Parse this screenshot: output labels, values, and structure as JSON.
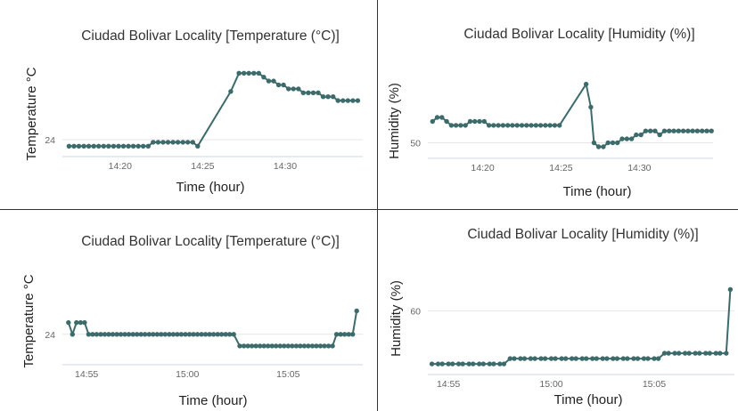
{
  "colors": {
    "series": "#3d6b6b",
    "grid": "#e6e6e6",
    "axis": "#ccd6eb",
    "divider": "#333333"
  },
  "chart_data": [
    {
      "type": "line",
      "title": "Ciudad Bolivar Locality [Temperature (°C)]",
      "xlabel": "Time (hour)",
      "ylabel": "Temperature °C",
      "x_ticks": [
        "14:20",
        "14:25",
        "14:30"
      ],
      "x_tick_minutes": [
        20,
        25,
        30
      ],
      "xlim": [
        16.5,
        34.7
      ],
      "y_ticks": [
        24
      ],
      "ylim": [
        23.35,
        26.8
      ],
      "x_minutes": [
        16.9,
        17.2,
        17.5,
        17.8,
        18.1,
        18.4,
        18.7,
        19.0,
        19.3,
        19.6,
        19.9,
        20.2,
        20.5,
        20.8,
        21.1,
        21.4,
        21.7,
        22.0,
        22.3,
        22.6,
        22.9,
        23.2,
        23.5,
        23.8,
        24.1,
        24.4,
        24.7,
        26.7,
        27.2,
        27.5,
        27.8,
        28.1,
        28.4,
        28.7,
        29.0,
        29.3,
        29.6,
        29.9,
        30.2,
        30.5,
        30.8,
        31.1,
        31.4,
        31.7,
        32.0,
        32.3,
        32.6,
        32.9,
        33.2,
        33.5,
        33.8,
        34.1,
        34.4
      ],
      "values": [
        23.75,
        23.75,
        23.75,
        23.75,
        23.75,
        23.75,
        23.75,
        23.75,
        23.75,
        23.75,
        23.75,
        23.75,
        23.75,
        23.75,
        23.75,
        23.75,
        23.75,
        23.9,
        23.9,
        23.9,
        23.9,
        23.9,
        23.9,
        23.9,
        23.9,
        23.9,
        23.75,
        25.85,
        26.55,
        26.55,
        26.55,
        26.55,
        26.55,
        26.4,
        26.25,
        26.25,
        26.1,
        26.1,
        25.95,
        25.95,
        25.95,
        25.8,
        25.8,
        25.8,
        25.8,
        25.65,
        25.65,
        25.65,
        25.5,
        25.5,
        25.5,
        25.5,
        25.5
      ]
    },
    {
      "type": "line",
      "title": "Ciudad Bolivar Locality [Humidity (%)]",
      "xlabel": "Time (hour)",
      "ylabel": "Humidity (%)",
      "x_ticks": [
        "14:20",
        "14:25",
        "14:30"
      ],
      "x_tick_minutes": [
        20,
        25,
        30
      ],
      "xlim": [
        16.5,
        34.7
      ],
      "y_ticks": [
        50
      ],
      "ylim": [
        49.02,
        54.8
      ],
      "x_minutes": [
        16.8,
        17.1,
        17.4,
        17.7,
        18.0,
        18.3,
        18.6,
        18.9,
        19.2,
        19.5,
        19.8,
        20.1,
        20.4,
        20.7,
        21.0,
        21.3,
        21.6,
        21.9,
        22.2,
        22.5,
        22.8,
        23.1,
        23.4,
        23.7,
        24.0,
        24.3,
        24.6,
        24.9,
        26.6,
        26.9,
        27.1,
        27.4,
        27.7,
        28.0,
        28.3,
        28.6,
        28.9,
        29.2,
        29.5,
        29.8,
        30.1,
        30.4,
        30.7,
        31.0,
        31.3,
        31.6,
        31.9,
        32.2,
        32.5,
        32.8,
        33.1,
        33.4,
        33.7,
        34.0,
        34.3,
        34.6
      ],
      "values": [
        51.35,
        51.6,
        51.6,
        51.35,
        51.1,
        51.1,
        51.1,
        51.1,
        51.35,
        51.35,
        51.35,
        51.35,
        51.1,
        51.1,
        51.1,
        51.1,
        51.1,
        51.1,
        51.1,
        51.1,
        51.1,
        51.1,
        51.1,
        51.1,
        51.1,
        51.1,
        51.1,
        51.1,
        53.7,
        52.25,
        50.0,
        49.75,
        49.75,
        50.0,
        50.0,
        50.0,
        50.25,
        50.25,
        50.25,
        50.5,
        50.5,
        50.75,
        50.75,
        50.75,
        50.5,
        50.75,
        50.75,
        50.75,
        50.75,
        50.75,
        50.75,
        50.75,
        50.75,
        50.75,
        50.75,
        50.75
      ]
    },
    {
      "type": "line",
      "title": "Ciudad Bolivar Locality [Temperature (°C)]",
      "xlabel": "Time (hour)",
      "ylabel": "Temperature °C",
      "x_ticks": [
        "14:55",
        "15:00",
        "15:05"
      ],
      "x_tick_minutes": [
        55,
        60,
        65
      ],
      "xlim": [
        53.8,
        68.7
      ],
      "y_ticks": [
        24
      ],
      "ylim": [
        23.35,
        25.25
      ],
      "x_minutes": [
        54.1,
        54.3,
        54.5,
        54.7,
        54.9,
        55.1,
        55.3,
        55.5,
        55.7,
        55.9,
        56.1,
        56.3,
        56.5,
        56.7,
        56.9,
        57.1,
        57.3,
        57.5,
        57.7,
        57.9,
        58.1,
        58.3,
        58.5,
        58.7,
        58.9,
        59.1,
        59.3,
        59.5,
        59.7,
        59.9,
        60.1,
        60.3,
        60.5,
        60.7,
        60.9,
        61.1,
        61.3,
        61.5,
        61.7,
        61.9,
        62.1,
        62.3,
        62.6,
        62.8,
        63.0,
        63.2,
        63.4,
        63.6,
        63.8,
        64.0,
        64.2,
        64.4,
        64.6,
        64.8,
        65.0,
        65.2,
        65.4,
        65.6,
        65.8,
        66.0,
        66.2,
        66.4,
        66.6,
        66.8,
        67.0,
        67.2,
        67.4,
        67.6,
        67.8,
        68.0,
        68.2,
        68.4
      ],
      "values": [
        24.25,
        24.0,
        24.25,
        24.25,
        24.25,
        24.0,
        24.0,
        24.0,
        24.0,
        24.0,
        24.0,
        24.0,
        24.0,
        24.0,
        24.0,
        24.0,
        24.0,
        24.0,
        24.0,
        24.0,
        24.0,
        24.0,
        24.0,
        24.0,
        24.0,
        24.0,
        24.0,
        24.0,
        24.0,
        24.0,
        24.0,
        24.0,
        24.0,
        24.0,
        24.0,
        24.0,
        24.0,
        24.0,
        24.0,
        24.0,
        24.0,
        24.0,
        23.75,
        23.75,
        23.75,
        23.75,
        23.75,
        23.75,
        23.75,
        23.75,
        23.75,
        23.75,
        23.75,
        23.75,
        23.75,
        23.75,
        23.75,
        23.75,
        23.75,
        23.75,
        23.75,
        23.75,
        23.75,
        23.75,
        23.75,
        23.75,
        24.0,
        24.0,
        24.0,
        24.0,
        24.0,
        24.5
      ]
    },
    {
      "type": "line",
      "title": "Ciudad Bolivar Locality [Humidity (%)]",
      "xlabel": "Time (hour)",
      "ylabel": "Humidity (%)",
      "x_ticks": [
        "14:55",
        "15:00",
        "15:05"
      ],
      "x_tick_minutes": [
        55,
        60,
        65
      ],
      "xlim": [
        54.0,
        68.9
      ],
      "y_ticks": [
        60
      ],
      "ylim": [
        57.0,
        62.4
      ],
      "x_minutes": [
        54.2,
        54.5,
        54.7,
        55.0,
        55.2,
        55.5,
        55.7,
        56.0,
        56.2,
        56.5,
        56.7,
        57.0,
        57.2,
        57.5,
        57.7,
        58.0,
        58.2,
        58.5,
        58.7,
        59.0,
        59.2,
        59.5,
        59.7,
        60.0,
        60.2,
        60.5,
        60.7,
        61.0,
        61.2,
        61.5,
        61.7,
        62.0,
        62.2,
        62.5,
        62.7,
        63.0,
        63.2,
        63.5,
        63.7,
        64.0,
        64.2,
        64.5,
        64.7,
        65.0,
        65.2,
        65.5,
        65.7,
        66.0,
        66.2,
        66.5,
        66.7,
        67.0,
        67.2,
        67.5,
        67.7,
        68.0,
        68.2,
        68.5,
        68.7
      ],
      "values": [
        57.5,
        57.5,
        57.5,
        57.5,
        57.5,
        57.5,
        57.5,
        57.5,
        57.5,
        57.5,
        57.5,
        57.5,
        57.5,
        57.5,
        57.5,
        57.75,
        57.75,
        57.75,
        57.75,
        57.75,
        57.75,
        57.75,
        57.75,
        57.75,
        57.75,
        57.75,
        57.75,
        57.75,
        57.75,
        57.75,
        57.75,
        57.75,
        57.75,
        57.75,
        57.75,
        57.75,
        57.75,
        57.75,
        57.75,
        57.75,
        57.75,
        57.75,
        57.75,
        57.75,
        57.75,
        58.0,
        58.0,
        58.0,
        58.0,
        58.0,
        58.0,
        58.0,
        58.0,
        58.0,
        58.0,
        58.0,
        58.0,
        58.0,
        61.0
      ]
    }
  ]
}
